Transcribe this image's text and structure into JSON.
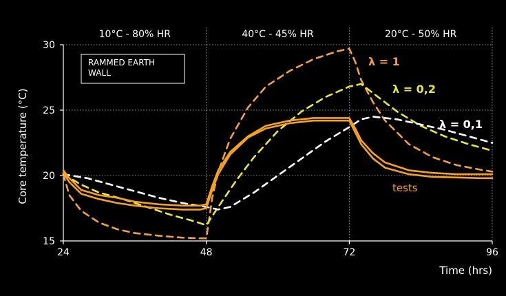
{
  "chart_data": {
    "type": "line",
    "xlabel": "Time (hrs)",
    "ylabel": "Core temperature (°C)",
    "xlim": [
      24,
      96
    ],
    "ylim": [
      15,
      30
    ],
    "xticks": [
      24,
      48,
      72,
      96
    ],
    "yticks": [
      15,
      20,
      25,
      30
    ],
    "grid": true,
    "phases": [
      {
        "label": "10°C - 80% HR",
        "start": 24,
        "end": 48
      },
      {
        "label": "40°C - 45% HR",
        "start": 48,
        "end": 72
      },
      {
        "label": "20°C - 50% HR",
        "start": 72,
        "end": 96
      }
    ],
    "box_text": [
      "RAMMED EARTH",
      "WALL"
    ],
    "tests_label": "tests",
    "series": [
      {
        "name": "λ = 1",
        "color": "#f0a04c",
        "style": "dashed",
        "x": [
          24,
          25,
          27,
          30,
          33,
          36,
          40,
          44,
          47,
          48,
          49,
          50,
          52,
          55,
          58,
          62,
          66,
          70,
          72,
          73,
          74,
          76,
          78,
          82,
          86,
          90,
          94,
          96
        ],
        "y": [
          20.1,
          18.5,
          17.3,
          16.4,
          15.9,
          15.6,
          15.4,
          15.25,
          15.2,
          15.2,
          18.3,
          20.3,
          22.8,
          25.2,
          26.8,
          28.0,
          28.9,
          29.5,
          29.7,
          28.7,
          27.3,
          25.6,
          24.2,
          22.4,
          21.4,
          20.8,
          20.45,
          20.3
        ]
      },
      {
        "name": "λ = 0,2",
        "color": "#e8e83a",
        "style": "dashed",
        "x": [
          24,
          27,
          30,
          34,
          38,
          42,
          46,
          48,
          50,
          53,
          56,
          60,
          64,
          68,
          72,
          74,
          76,
          80,
          84,
          88,
          92,
          96
        ],
        "y": [
          20.1,
          19.3,
          18.7,
          18.2,
          17.6,
          17.0,
          16.5,
          16.2,
          17.6,
          19.6,
          21.4,
          23.4,
          24.9,
          26.0,
          26.8,
          27.0,
          26.3,
          24.9,
          23.8,
          23.0,
          22.4,
          21.9
        ]
      },
      {
        "name": "λ = 0,1",
        "color": "#ffffff",
        "style": "dashed",
        "x": [
          24,
          28,
          32,
          36,
          40,
          44,
          48,
          50,
          52,
          56,
          60,
          64,
          68,
          72,
          74,
          76,
          80,
          84,
          88,
          92,
          96
        ],
        "y": [
          20.1,
          19.8,
          19.3,
          18.8,
          18.3,
          17.9,
          17.6,
          17.4,
          17.6,
          18.7,
          20.0,
          21.3,
          22.6,
          23.7,
          24.3,
          24.5,
          24.3,
          23.9,
          23.5,
          23.0,
          22.5
        ]
      },
      {
        "name": "tests",
        "color": "#f7a21c",
        "style": "solid",
        "x": [
          24,
          25,
          27,
          30,
          33,
          36,
          40,
          44,
          47,
          48,
          49,
          50,
          52,
          55,
          58,
          62,
          66,
          70,
          72,
          73,
          74,
          76,
          78,
          82,
          86,
          90,
          94,
          96
        ],
        "y": [
          20.4,
          19.8,
          18.9,
          18.5,
          18.3,
          18.0,
          17.8,
          17.7,
          17.7,
          17.8,
          19.2,
          20.4,
          21.8,
          23.0,
          23.8,
          24.2,
          24.4,
          24.4,
          24.4,
          23.6,
          22.7,
          21.7,
          21.0,
          20.4,
          20.2,
          20.1,
          20.1,
          20.1
        ]
      },
      {
        "name": "tests",
        "color": "#f7a21c",
        "style": "solid",
        "x": [
          24,
          25,
          27,
          30,
          33,
          36,
          40,
          44,
          47,
          48,
          49,
          50,
          52,
          55,
          58,
          62,
          66,
          70,
          72,
          73,
          74,
          76,
          78,
          82,
          86,
          90,
          94,
          96
        ],
        "y": [
          20.2,
          19.5,
          18.6,
          18.2,
          17.9,
          17.7,
          17.5,
          17.4,
          17.4,
          17.5,
          18.9,
          20.1,
          21.6,
          22.9,
          23.6,
          24.0,
          24.2,
          24.2,
          24.2,
          23.3,
          22.4,
          21.3,
          20.6,
          20.1,
          19.9,
          19.85,
          19.8,
          19.8
        ]
      }
    ]
  },
  "labels": {
    "lambda1": "λ = 1",
    "lambda02": "λ = 0,2",
    "lambda01": "λ = 0,1"
  }
}
